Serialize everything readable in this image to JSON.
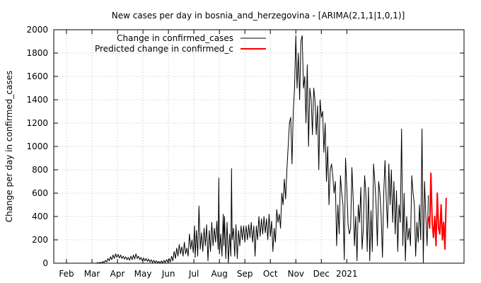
{
  "chart_data": {
    "type": "line",
    "title": "New cases per day in bosnia_and_herzegovina -  [ARIMA(2,1,1|1,0,1)]",
    "xlabel": "",
    "ylabel": "Change per day in confirmed_cases",
    "xlim": [
      0,
      32.2
    ],
    "ylim": [
      0,
      2000
    ],
    "yticks": [
      0,
      200,
      400,
      600,
      800,
      1000,
      1200,
      1400,
      1600,
      1800,
      2000
    ],
    "xticks": [
      {
        "x": 1,
        "label": "Feb"
      },
      {
        "x": 3,
        "label": "Mar"
      },
      {
        "x": 5,
        "label": "Apr"
      },
      {
        "x": 7,
        "label": "May"
      },
      {
        "x": 9,
        "label": "Jun"
      },
      {
        "x": 11,
        "label": "Jul"
      },
      {
        "x": 13,
        "label": "Aug"
      },
      {
        "x": 15,
        "label": "Sep"
      },
      {
        "x": 17,
        "label": "Oct"
      },
      {
        "x": 19,
        "label": "Nov"
      },
      {
        "x": 21,
        "label": "Dec"
      },
      {
        "x": 23,
        "label": "2021"
      }
    ],
    "grid": true,
    "legend_position": "top-left",
    "series": [
      {
        "name": "Change in confirmed_cases",
        "color": "#000000",
        "points": [
          [
            0,
            0
          ],
          [
            2.0,
            0
          ],
          [
            3.0,
            0
          ],
          [
            3.35,
            0
          ],
          [
            3.45,
            5
          ],
          [
            3.55,
            0
          ],
          [
            3.65,
            8
          ],
          [
            3.75,
            0
          ],
          [
            3.85,
            15
          ],
          [
            3.95,
            5
          ],
          [
            4.05,
            25
          ],
          [
            4.15,
            10
          ],
          [
            4.25,
            40
          ],
          [
            4.35,
            20
          ],
          [
            4.45,
            55
          ],
          [
            4.55,
            30
          ],
          [
            4.65,
            70
          ],
          [
            4.75,
            40
          ],
          [
            4.85,
            80
          ],
          [
            4.95,
            50
          ],
          [
            5.05,
            75
          ],
          [
            5.15,
            45
          ],
          [
            5.25,
            70
          ],
          [
            5.35,
            40
          ],
          [
            5.45,
            60
          ],
          [
            5.55,
            35
          ],
          [
            5.65,
            55
          ],
          [
            5.75,
            30
          ],
          [
            5.85,
            50
          ],
          [
            5.95,
            25
          ],
          [
            6.05,
            60
          ],
          [
            6.15,
            30
          ],
          [
            6.25,
            70
          ],
          [
            6.35,
            35
          ],
          [
            6.45,
            80
          ],
          [
            6.55,
            40
          ],
          [
            6.65,
            60
          ],
          [
            6.75,
            30
          ],
          [
            6.85,
            50
          ],
          [
            6.95,
            20
          ],
          [
            7.05,
            45
          ],
          [
            7.15,
            20
          ],
          [
            7.25,
            40
          ],
          [
            7.35,
            15
          ],
          [
            7.45,
            35
          ],
          [
            7.55,
            10
          ],
          [
            7.65,
            30
          ],
          [
            7.75,
            5
          ],
          [
            7.85,
            25
          ],
          [
            7.95,
            5
          ],
          [
            8.05,
            20
          ],
          [
            8.15,
            5
          ],
          [
            8.25,
            15
          ],
          [
            8.35,
            0
          ],
          [
            8.45,
            20
          ],
          [
            8.55,
            0
          ],
          [
            8.65,
            25
          ],
          [
            8.75,
            5
          ],
          [
            8.85,
            30
          ],
          [
            8.95,
            10
          ],
          [
            9.05,
            40
          ],
          [
            9.15,
            10
          ],
          [
            9.25,
            60
          ],
          [
            9.35,
            20
          ],
          [
            9.45,
            100
          ],
          [
            9.55,
            40
          ],
          [
            9.65,
            130
          ],
          [
            9.75,
            60
          ],
          [
            9.85,
            160
          ],
          [
            9.95,
            80
          ],
          [
            10.05,
            140
          ],
          [
            10.15,
            60
          ],
          [
            10.25,
            180
          ],
          [
            10.35,
            80
          ],
          [
            10.45,
            130
          ],
          [
            10.55,
            60
          ],
          [
            10.65,
            250
          ],
          [
            10.75,
            120
          ],
          [
            10.85,
            200
          ],
          [
            10.95,
            90
          ],
          [
            11.05,
            320
          ],
          [
            11.1,
            50
          ],
          [
            11.2,
            280
          ],
          [
            11.3,
            60
          ],
          [
            11.4,
            490
          ],
          [
            11.5,
            120
          ],
          [
            11.6,
            260
          ],
          [
            11.7,
            100
          ],
          [
            11.8,
            300
          ],
          [
            11.9,
            150
          ],
          [
            12.0,
            330
          ],
          [
            12.1,
            20
          ],
          [
            12.2,
            280
          ],
          [
            12.3,
            100
          ],
          [
            12.4,
            350
          ],
          [
            12.5,
            150
          ],
          [
            12.6,
            300
          ],
          [
            12.7,
            180
          ],
          [
            12.8,
            360
          ],
          [
            12.9,
            120
          ],
          [
            12.95,
            730
          ],
          [
            13.0,
            80
          ],
          [
            13.1,
            250
          ],
          [
            13.2,
            60
          ],
          [
            13.3,
            420
          ],
          [
            13.35,
            150
          ],
          [
            13.4,
            400
          ],
          [
            13.5,
            40
          ],
          [
            13.6,
            350
          ],
          [
            13.7,
            0
          ],
          [
            13.8,
            250
          ],
          [
            13.9,
            60
          ],
          [
            13.95,
            810
          ],
          [
            14.0,
            200
          ],
          [
            14.1,
            300
          ],
          [
            14.2,
            60
          ],
          [
            14.3,
            330
          ],
          [
            14.4,
            40
          ],
          [
            14.5,
            280
          ],
          [
            14.6,
            150
          ],
          [
            14.7,
            320
          ],
          [
            14.8,
            200
          ],
          [
            14.9,
            320
          ],
          [
            15.0,
            180
          ],
          [
            15.1,
            320
          ],
          [
            15.2,
            200
          ],
          [
            15.3,
            330
          ],
          [
            15.4,
            220
          ],
          [
            15.5,
            350
          ],
          [
            15.6,
            180
          ],
          [
            15.7,
            320
          ],
          [
            15.8,
            60
          ],
          [
            15.9,
            320
          ],
          [
            16.0,
            200
          ],
          [
            16.1,
            400
          ],
          [
            16.2,
            230
          ],
          [
            16.3,
            380
          ],
          [
            16.4,
            250
          ],
          [
            16.5,
            400
          ],
          [
            16.6,
            260
          ],
          [
            16.7,
            380
          ],
          [
            16.8,
            200
          ],
          [
            16.9,
            420
          ],
          [
            17.0,
            230
          ],
          [
            17.1,
            360
          ],
          [
            17.2,
            100
          ],
          [
            17.3,
            300
          ],
          [
            17.4,
            180
          ],
          [
            17.5,
            460
          ],
          [
            17.6,
            350
          ],
          [
            17.7,
            420
          ],
          [
            17.8,
            300
          ],
          [
            17.9,
            600
          ],
          [
            18.0,
            500
          ],
          [
            18.1,
            720
          ],
          [
            18.2,
            550
          ],
          [
            18.3,
            800
          ],
          [
            18.4,
            1000
          ],
          [
            18.5,
            1200
          ],
          [
            18.6,
            1250
          ],
          [
            18.7,
            850
          ],
          [
            18.8,
            1300
          ],
          [
            18.9,
            1500
          ],
          [
            19.0,
            1950
          ],
          [
            19.1,
            1500
          ],
          [
            19.2,
            1800
          ],
          [
            19.3,
            1400
          ],
          [
            19.4,
            1900
          ],
          [
            19.5,
            1950
          ],
          [
            19.6,
            1500
          ],
          [
            19.7,
            1600
          ],
          [
            19.8,
            1200
          ],
          [
            19.9,
            1700
          ],
          [
            20.0,
            1000
          ],
          [
            20.1,
            1500
          ],
          [
            20.2,
            1400
          ],
          [
            20.3,
            1100
          ],
          [
            20.4,
            1500
          ],
          [
            20.5,
            1400
          ],
          [
            20.6,
            1100
          ],
          [
            20.7,
            1350
          ],
          [
            20.8,
            800
          ],
          [
            20.9,
            1400
          ],
          [
            21.0,
            1250
          ],
          [
            21.1,
            1300
          ],
          [
            21.2,
            950
          ],
          [
            21.3,
            1200
          ],
          [
            21.4,
            700
          ],
          [
            21.5,
            1000
          ],
          [
            21.6,
            500
          ],
          [
            21.7,
            800
          ],
          [
            21.8,
            850
          ],
          [
            21.9,
            750
          ],
          [
            22.0,
            600
          ],
          [
            22.1,
            700
          ],
          [
            22.2,
            150
          ],
          [
            22.3,
            500
          ],
          [
            22.4,
            250
          ],
          [
            22.5,
            750
          ],
          [
            22.6,
            600
          ],
          [
            22.7,
            500
          ],
          [
            22.8,
            30
          ],
          [
            22.9,
            900
          ],
          [
            23.0,
            650
          ],
          [
            23.1,
            330
          ],
          [
            23.2,
            250
          ],
          [
            23.3,
            300
          ],
          [
            23.4,
            820
          ],
          [
            23.5,
            550
          ],
          [
            23.6,
            150
          ],
          [
            23.7,
            400
          ],
          [
            23.8,
            20
          ],
          [
            23.9,
            500
          ],
          [
            24.0,
            350
          ],
          [
            24.1,
            650
          ],
          [
            24.2,
            120
          ],
          [
            24.3,
            300
          ],
          [
            24.4,
            750
          ],
          [
            24.5,
            600
          ],
          [
            24.6,
            100
          ],
          [
            24.7,
            650
          ],
          [
            24.8,
            20
          ],
          [
            24.9,
            450
          ],
          [
            25.0,
            100
          ],
          [
            25.1,
            850
          ],
          [
            25.2,
            700
          ],
          [
            25.3,
            500
          ],
          [
            25.4,
            150
          ],
          [
            25.5,
            700
          ],
          [
            25.6,
            600
          ],
          [
            25.7,
            400
          ],
          [
            25.8,
            50
          ],
          [
            25.9,
            600
          ],
          [
            26.0,
            880
          ],
          [
            26.1,
            550
          ],
          [
            26.2,
            300
          ],
          [
            26.3,
            850
          ],
          [
            26.4,
            500
          ],
          [
            26.5,
            800
          ],
          [
            26.6,
            350
          ],
          [
            26.7,
            700
          ],
          [
            26.8,
            250
          ],
          [
            26.9,
            620
          ],
          [
            27.0,
            100
          ],
          [
            27.1,
            500
          ],
          [
            27.2,
            350
          ],
          [
            27.3,
            1150
          ],
          [
            27.4,
            150
          ],
          [
            27.5,
            600
          ],
          [
            27.6,
            20
          ],
          [
            27.7,
            400
          ],
          [
            27.8,
            200
          ],
          [
            27.9,
            300
          ],
          [
            28.0,
            150
          ],
          [
            28.1,
            750
          ],
          [
            28.2,
            600
          ],
          [
            28.3,
            500
          ],
          [
            28.4,
            60
          ],
          [
            28.5,
            350
          ],
          [
            28.6,
            180
          ],
          [
            28.7,
            500
          ],
          [
            28.8,
            200
          ],
          [
            28.9,
            1150
          ],
          [
            29.0,
            0
          ],
          [
            29.1,
            700
          ],
          [
            29.2,
            400
          ],
          [
            29.3,
            150
          ],
          [
            29.4,
            580
          ]
        ]
      },
      {
        "name": "Predicted change in confirmed_c",
        "color": "#ff0000",
        "points": [
          [
            29.4,
            400
          ],
          [
            29.5,
            300
          ],
          [
            29.6,
            770
          ],
          [
            29.7,
            350
          ],
          [
            29.8,
            220
          ],
          [
            29.9,
            400
          ],
          [
            30.0,
            150
          ],
          [
            30.1,
            600
          ],
          [
            30.2,
            300
          ],
          [
            30.3,
            250
          ],
          [
            30.4,
            500
          ],
          [
            30.5,
            200
          ],
          [
            30.6,
            350
          ],
          [
            30.7,
            120
          ],
          [
            30.8,
            560
          ]
        ]
      }
    ]
  }
}
